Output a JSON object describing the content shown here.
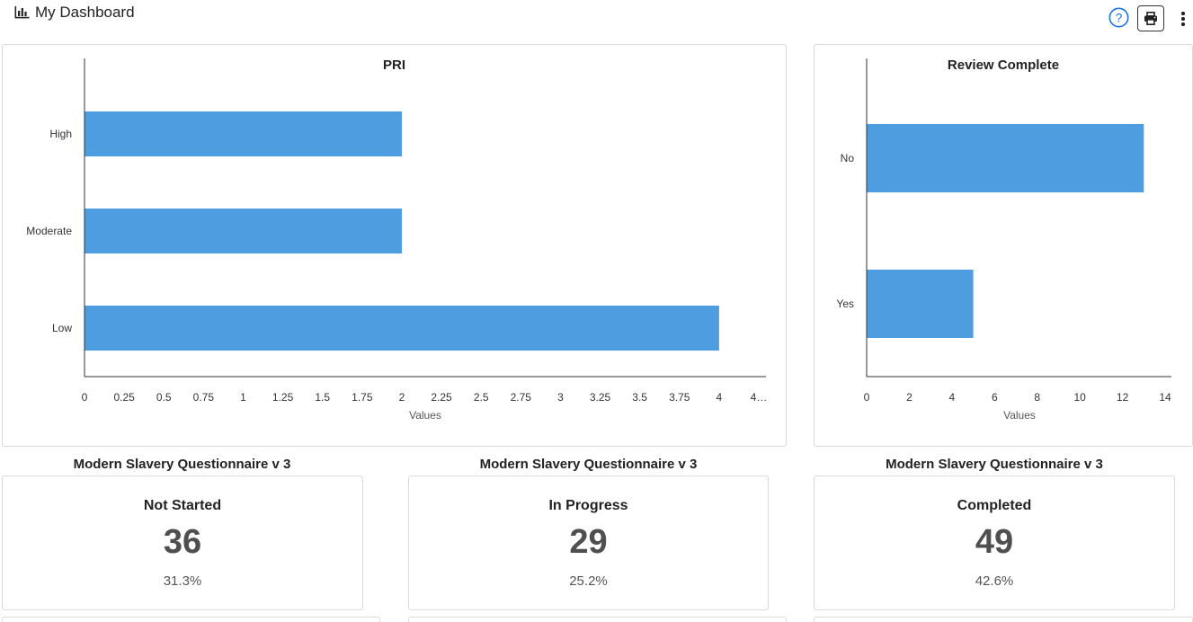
{
  "header": {
    "title": "My Dashboard",
    "icon": "bar-chart-icon",
    "help_icon": "help-circle-icon",
    "print_icon": "printer-icon",
    "more_icon": "more-vertical-icon",
    "accent_color": "#1a73e8"
  },
  "chart_data": [
    {
      "type": "bar",
      "orientation": "horizontal",
      "title": "PRI",
      "categories": [
        "High",
        "Moderate",
        "Low"
      ],
      "values": [
        2,
        2,
        4
      ],
      "xlabel": "Values",
      "ylabel": "",
      "xlim": [
        0,
        4.25
      ],
      "ticks": [
        "0",
        "0.25",
        "0.5",
        "0.75",
        "1",
        "1.25",
        "1.5",
        "1.75",
        "2",
        "2.25",
        "2.5",
        "2.75",
        "3",
        "3.25",
        "3.5",
        "3.75",
        "4",
        "4…"
      ],
      "grid": false,
      "bar_color": "#4d9de0"
    },
    {
      "type": "bar",
      "orientation": "horizontal",
      "title": "Review Complete",
      "categories": [
        "No",
        "Yes"
      ],
      "values": [
        13,
        5
      ],
      "xlabel": "Values",
      "ylabel": "",
      "xlim": [
        0,
        14
      ],
      "ticks": [
        "0",
        "2",
        "4",
        "6",
        "8",
        "10",
        "12",
        "14"
      ],
      "grid": false,
      "bar_color": "#4d9de0"
    }
  ],
  "stats": [
    {
      "heading": "Modern Slavery Questionnaire v 3",
      "label": "Not Started",
      "value": "36",
      "percent": "31.3%"
    },
    {
      "heading": "Modern Slavery Questionnaire v 3",
      "label": "In Progress",
      "value": "29",
      "percent": "25.2%"
    },
    {
      "heading": "Modern Slavery Questionnaire v 3",
      "label": "Completed",
      "value": "49",
      "percent": "42.6%"
    }
  ]
}
